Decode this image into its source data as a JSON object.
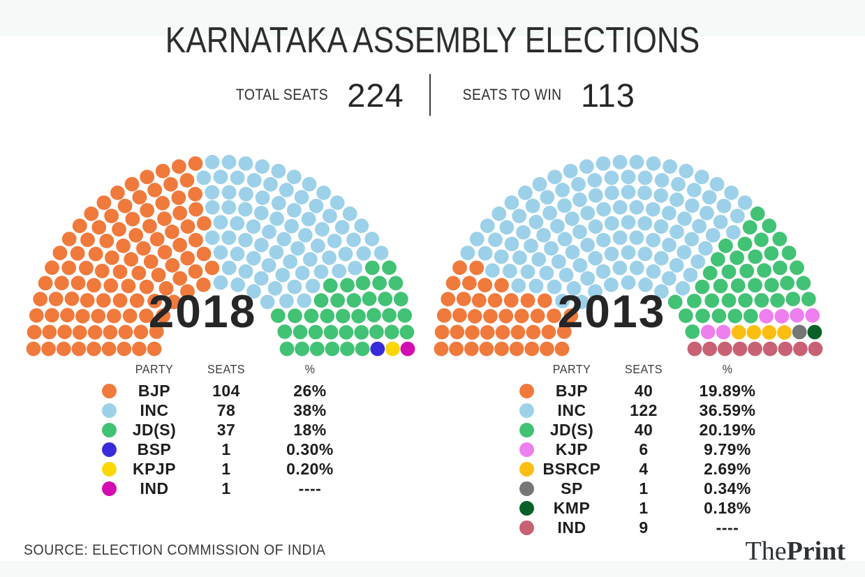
{
  "page": {
    "background_color": "#f5faf8",
    "panel_color": "#ffffff"
  },
  "header": {
    "title": "KARNATAKA ASSEMBLY ELECTIONS",
    "stats": [
      {
        "label": "TOTAL SEATS",
        "value": "224"
      },
      {
        "label": "SEATS TO WIN",
        "value": "113"
      }
    ]
  },
  "legend_headers": {
    "party": "PARTY",
    "seats": "SEATS",
    "pct": "%"
  },
  "chart_data": [
    {
      "type": "parliament",
      "title": "2018",
      "year": "2018",
      "layout": {
        "rows": 9,
        "arc_degrees": 180,
        "legend_position": "below"
      },
      "total_chart_seats": 224,
      "series": [
        {
          "name": "BJP",
          "seats": 104,
          "pct": "26%",
          "color": "#EF7A3C"
        },
        {
          "name": "INC",
          "seats": 78,
          "pct": "38%",
          "color": "#9CD1E9"
        },
        {
          "name": "JD(S)",
          "seats": 37,
          "pct": "18%",
          "color": "#42C274"
        },
        {
          "name": "BSP",
          "seats": 1,
          "pct": "0.30%",
          "color": "#3A2BDA"
        },
        {
          "name": "KPJP",
          "seats": 1,
          "pct": "0.20%",
          "color": "#FBD703"
        },
        {
          "name": "IND",
          "seats": 1,
          "pct": "----",
          "color": "#D40DB0"
        }
      ]
    },
    {
      "type": "parliament",
      "title": "2013",
      "year": "2013",
      "layout": {
        "rows": 9,
        "arc_degrees": 180,
        "legend_position": "below"
      },
      "total_chart_seats": 224,
      "series": [
        {
          "name": "BJP",
          "seats": 40,
          "pct": "19.89%",
          "color": "#EF7A3C"
        },
        {
          "name": "INC",
          "seats": 122,
          "pct": "36.59%",
          "color": "#9CD1E9"
        },
        {
          "name": "JD(S)",
          "seats": 40,
          "pct": "20.19%",
          "color": "#42C274"
        },
        {
          "name": "KJP",
          "seats": 6,
          "pct": "9.79%",
          "color": "#EE7FEE"
        },
        {
          "name": "BSRCP",
          "seats": 4,
          "pct": "2.69%",
          "color": "#FCBE12"
        },
        {
          "name": "SP",
          "seats": 1,
          "pct": "0.34%",
          "color": "#767676"
        },
        {
          "name": "KMP",
          "seats": 1,
          "pct": "0.18%",
          "color": "#0A6128"
        },
        {
          "name": "IND",
          "seats": 9,
          "pct": "----",
          "color": "#C96175"
        }
      ]
    }
  ],
  "footer": {
    "source": "SOURCE: ELECTION COMMISSION OF INDIA",
    "logo_the": "The",
    "logo_print": "Print"
  }
}
